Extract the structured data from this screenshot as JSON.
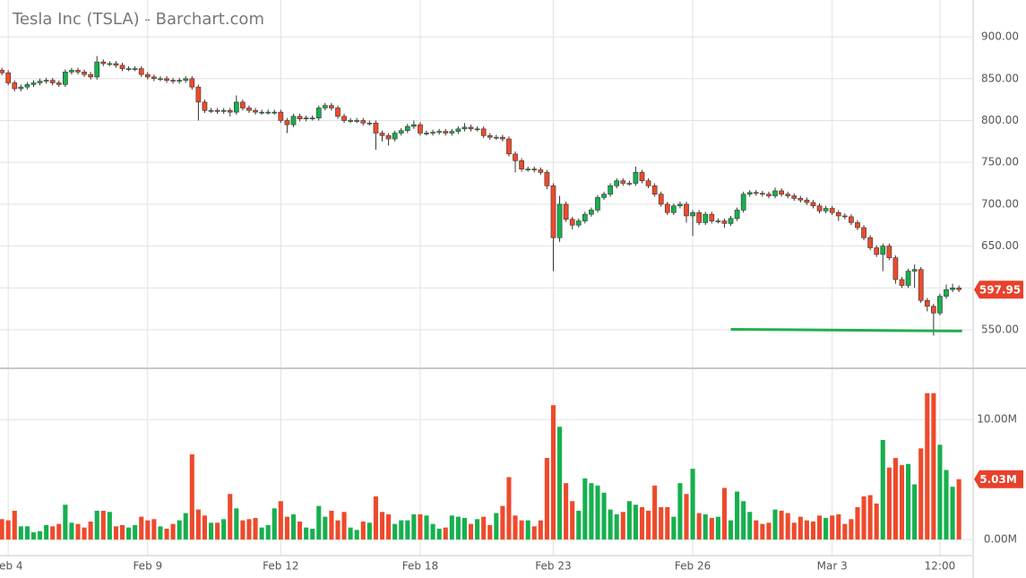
{
  "chart_data": {
    "type": "candlestick",
    "title": "Tesla Inc (TSLA) - Barchart.com",
    "xlim": [
      -0.3,
      153.1
    ],
    "xticks": [
      {
        "value": 1,
        "label": "Feb 4"
      },
      {
        "value": 23,
        "label": "Feb 9"
      },
      {
        "value": 44,
        "label": "Feb 12"
      },
      {
        "value": 66,
        "label": "Feb 18"
      },
      {
        "value": 87,
        "label": "Feb 23"
      },
      {
        "value": 109,
        "label": "Feb 26"
      },
      {
        "value": 131,
        "label": "Mar 3"
      },
      {
        "value": 148,
        "label": "12:00"
      }
    ],
    "ylim": [
      505,
      944
    ],
    "yticks": [
      {
        "value": 550,
        "label": "550.00"
      },
      {
        "value": 600,
        "label": "600.00"
      },
      {
        "value": 650,
        "label": "650.00"
      },
      {
        "value": 700,
        "label": "700.00"
      },
      {
        "value": 750,
        "label": "750.00"
      },
      {
        "value": 800,
        "label": "800.00"
      },
      {
        "value": 850,
        "label": "850.00"
      },
      {
        "value": 900,
        "label": "900.00"
      }
    ],
    "y2lim": [
      -1.34,
      14.2
    ],
    "y2ticks": [
      {
        "value": 0,
        "label": "0.00M"
      },
      {
        "value": 10,
        "label": "10.00M"
      }
    ],
    "up_color": "#16b04e",
    "down_color": "#ee4a2c",
    "open": [
      860,
      857,
      845,
      838,
      840,
      843,
      845,
      847,
      848,
      845,
      843,
      858,
      860,
      858,
      855,
      852,
      870,
      868,
      868,
      866,
      862,
      862,
      862,
      855,
      852,
      850,
      850,
      848,
      847,
      848,
      850,
      840,
      822,
      812,
      812,
      811,
      812,
      810,
      822,
      815,
      812,
      810,
      810,
      810,
      810,
      800,
      795,
      805,
      802,
      803,
      803,
      815,
      818,
      815,
      805,
      800,
      800,
      800,
      797,
      797,
      785,
      782,
      778,
      785,
      788,
      793,
      795,
      785,
      785,
      786,
      787,
      785,
      787,
      790,
      792,
      790,
      790,
      782,
      780,
      780,
      778,
      760,
      752,
      742,
      742,
      741,
      738,
      722,
      660,
      700,
      682,
      675,
      680,
      688,
      693,
      708,
      712,
      722,
      728,
      725,
      725,
      738,
      728,
      722,
      712,
      700,
      690,
      698,
      700,
      686,
      690,
      678,
      688,
      680,
      680,
      677,
      683,
      693,
      712,
      714,
      713,
      712,
      710,
      716,
      712,
      710,
      707,
      705,
      702,
      698,
      692,
      695,
      690,
      686,
      685,
      678,
      672,
      660,
      648,
      640,
      650,
      636,
      610,
      603,
      620,
      622,
      585,
      578,
      570,
      590,
      598,
      600
    ],
    "high": [
      863,
      860,
      848,
      843,
      846,
      848,
      850,
      851,
      851,
      848,
      861,
      863,
      863,
      861,
      858,
      877,
      873,
      871,
      871,
      869,
      865,
      865,
      865,
      858,
      855,
      853,
      853,
      851,
      851,
      853,
      853,
      843,
      825,
      815,
      815,
      815,
      815,
      830,
      825,
      818,
      815,
      813,
      813,
      813,
      813,
      803,
      808,
      808,
      806,
      806,
      818,
      821,
      821,
      818,
      808,
      803,
      803,
      803,
      800,
      800,
      788,
      785,
      788,
      791,
      796,
      800,
      798,
      788,
      789,
      790,
      790,
      790,
      793,
      797,
      795,
      793,
      793,
      785,
      783,
      783,
      781,
      763,
      755,
      745,
      745,
      744,
      741,
      725,
      710,
      703,
      685,
      683,
      691,
      696,
      711,
      715,
      725,
      731,
      731,
      728,
      745,
      741,
      731,
      725,
      715,
      703,
      701,
      703,
      703,
      693,
      693,
      691,
      691,
      683,
      683,
      686,
      696,
      715,
      717,
      717,
      716,
      715,
      720,
      719,
      715,
      713,
      710,
      708,
      705,
      701,
      698,
      698,
      693,
      689,
      688,
      681,
      675,
      663,
      651,
      653,
      653,
      639,
      613,
      623,
      628,
      625,
      588,
      581,
      593,
      604,
      605,
      603
    ],
    "low": [
      854,
      842,
      835,
      835,
      837,
      840,
      842,
      844,
      842,
      840,
      840,
      855,
      855,
      852,
      849,
      849,
      865,
      865,
      863,
      859,
      859,
      859,
      852,
      849,
      847,
      847,
      845,
      844,
      844,
      845,
      837,
      800,
      809,
      809,
      808,
      808,
      805,
      807,
      812,
      809,
      807,
      807,
      807,
      807,
      797,
      785,
      792,
      799,
      799,
      800,
      800,
      812,
      812,
      802,
      797,
      797,
      797,
      794,
      794,
      765,
      775,
      770,
      775,
      782,
      785,
      790,
      782,
      782,
      782,
      783,
      782,
      782,
      784,
      787,
      787,
      787,
      779,
      777,
      777,
      775,
      757,
      738,
      739,
      739,
      738,
      735,
      718,
      620,
      655,
      679,
      670,
      672,
      677,
      685,
      690,
      705,
      709,
      719,
      722,
      722,
      722,
      725,
      719,
      709,
      697,
      687,
      687,
      695,
      678,
      662,
      675,
      675,
      677,
      677,
      672,
      674,
      680,
      690,
      709,
      710,
      709,
      707,
      707,
      709,
      707,
      704,
      702,
      699,
      695,
      689,
      689,
      687,
      680,
      682,
      675,
      669,
      657,
      645,
      637,
      620,
      633,
      605,
      600,
      600,
      600,
      582,
      572,
      543,
      567,
      587,
      595,
      595
    ],
    "close": [
      857,
      845,
      838,
      840,
      843,
      845,
      847,
      848,
      845,
      843,
      858,
      860,
      858,
      855,
      852,
      870,
      868,
      868,
      866,
      862,
      862,
      862,
      855,
      852,
      850,
      850,
      848,
      847,
      848,
      850,
      840,
      822,
      812,
      812,
      811,
      812,
      810,
      822,
      815,
      812,
      810,
      810,
      810,
      810,
      800,
      795,
      805,
      802,
      803,
      803,
      815,
      818,
      815,
      805,
      800,
      800,
      800,
      797,
      797,
      785,
      782,
      778,
      785,
      788,
      793,
      795,
      785,
      785,
      786,
      787,
      785,
      787,
      790,
      792,
      790,
      790,
      782,
      780,
      780,
      778,
      760,
      752,
      742,
      742,
      741,
      738,
      722,
      660,
      700,
      682,
      675,
      680,
      688,
      693,
      708,
      712,
      722,
      728,
      725,
      725,
      738,
      728,
      722,
      712,
      700,
      690,
      698,
      700,
      686,
      690,
      678,
      688,
      680,
      680,
      677,
      683,
      693,
      712,
      714,
      713,
      712,
      710,
      716,
      712,
      710,
      707,
      705,
      702,
      698,
      692,
      695,
      690,
      686,
      685,
      678,
      672,
      660,
      648,
      640,
      650,
      636,
      610,
      603,
      620,
      622,
      585,
      578,
      570,
      590,
      598,
      600,
      597.95
    ],
    "volume": [
      1.7,
      1.6,
      2.4,
      1.1,
      1.1,
      0.6,
      0.7,
      1.2,
      1.1,
      1.3,
      2.9,
      1.4,
      1.3,
      1.0,
      1.5,
      2.4,
      2.4,
      2.3,
      1.1,
      1.2,
      1.0,
      1.2,
      1.9,
      1.6,
      1.7,
      1.1,
      0.9,
      1.3,
      1.6,
      2.2,
      7.1,
      2.5,
      2.0,
      1.4,
      1.4,
      1.7,
      3.8,
      2.6,
      1.6,
      1.7,
      1.8,
      1.0,
      1.2,
      2.6,
      3.2,
      1.9,
      2.1,
      1.5,
      1.0,
      0.9,
      2.8,
      1.9,
      2.4,
      1.6,
      2.3,
      1.0,
      0.8,
      1.5,
      1.4,
      3.6,
      2.3,
      2.1,
      1.3,
      1.6,
      1.6,
      2.1,
      2.1,
      2.0,
      1.3,
      0.9,
      1.0,
      2.0,
      1.9,
      1.8,
      1.3,
      1.7,
      1.9,
      1.2,
      2.2,
      2.8,
      5.2,
      2.0,
      1.6,
      1.6,
      1.1,
      1.6,
      6.8,
      11.2,
      9.4,
      4.7,
      3.2,
      2.4,
      5.1,
      4.7,
      4.5,
      3.9,
      2.5,
      2.1,
      2.3,
      3.2,
      2.9,
      2.7,
      2.4,
      4.5,
      2.7,
      2.7,
      1.9,
      4.7,
      3.8,
      5.9,
      2.2,
      2.1,
      1.8,
      1.9,
      4.3,
      1.6,
      4.0,
      3.2,
      2.3,
      1.6,
      1.3,
      1.4,
      2.5,
      2.4,
      2.2,
      1.4,
      1.9,
      1.6,
      1.5,
      2.0,
      1.8,
      2.0,
      2.1,
      1.3,
      1.7,
      2.7,
      3.6,
      3.7,
      3.0,
      8.3,
      6.0,
      6.8,
      6.2,
      6.3,
      4.6,
      7.6,
      12.2,
      12.2,
      7.9,
      5.8,
      4.4,
      5.03
    ],
    "last_price": 597.95,
    "last_volume": {
      "value": 5.03,
      "label": "5.03M"
    },
    "trendline": {
      "x": [
        115,
        151.5
      ],
      "y": [
        550.5,
        548.5
      ],
      "color": "#1fb04a"
    }
  }
}
